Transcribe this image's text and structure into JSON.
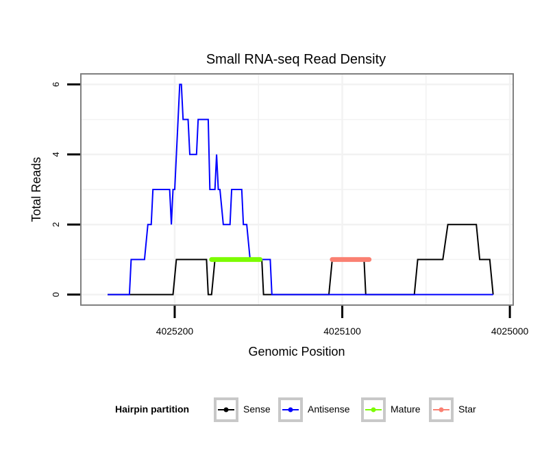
{
  "chart_data": {
    "type": "line",
    "title": "Small RNA-seq Read Density",
    "xlabel": "Genomic Position",
    "ylabel": "Total Reads",
    "x_reversed": true,
    "xlim": [
      4025256,
      4024998
    ],
    "ylim": [
      -0.3,
      6.3
    ],
    "xticks": [
      4025200,
      4025100,
      4025000
    ],
    "yticks": [
      0,
      2,
      4,
      6
    ],
    "grid": true,
    "legend_position": "bottom",
    "legend_title": "Hairpin partition",
    "series": [
      {
        "name": "Sense",
        "color": "#000000",
        "points": [
          [
            4025240,
            0
          ],
          [
            4025201,
            0
          ],
          [
            4025199,
            1
          ],
          [
            4025181,
            1
          ],
          [
            4025180,
            0
          ],
          [
            4025178,
            0
          ],
          [
            4025176,
            1
          ],
          [
            4025163,
            1
          ],
          [
            4025162,
            1
          ],
          [
            4025148,
            1
          ],
          [
            4025147,
            0
          ],
          [
            4025108,
            0
          ],
          [
            4025106,
            1
          ],
          [
            4025087,
            1
          ],
          [
            4025086,
            0
          ],
          [
            4025057,
            0
          ],
          [
            4025055,
            1
          ],
          [
            4025040,
            1
          ],
          [
            4025037,
            2
          ],
          [
            4025020,
            2
          ],
          [
            4025018,
            1
          ],
          [
            4025012,
            1
          ],
          [
            4025010,
            0
          ],
          [
            4025010,
            0
          ]
        ]
      },
      {
        "name": "Antisense",
        "color": "#0000ff",
        "points": [
          [
            4025240,
            0
          ],
          [
            4025227,
            0
          ],
          [
            4025226,
            1
          ],
          [
            4025218,
            1
          ],
          [
            4025216,
            2
          ],
          [
            4025214,
            2
          ],
          [
            4025213,
            3
          ],
          [
            4025203,
            3
          ],
          [
            4025202,
            2
          ],
          [
            4025201,
            3
          ],
          [
            4025200,
            3
          ],
          [
            4025198,
            5
          ],
          [
            4025197,
            6
          ],
          [
            4025196,
            6
          ],
          [
            4025195,
            5
          ],
          [
            4025192,
            5
          ],
          [
            4025191,
            4
          ],
          [
            4025187,
            4
          ],
          [
            4025186,
            5
          ],
          [
            4025180,
            5
          ],
          [
            4025179,
            3
          ],
          [
            4025176,
            3
          ],
          [
            4025175,
            4
          ],
          [
            4025174,
            3
          ],
          [
            4025173,
            3
          ],
          [
            4025171,
            2
          ],
          [
            4025167,
            2
          ],
          [
            4025166,
            3
          ],
          [
            4025160,
            3
          ],
          [
            4025159,
            2
          ],
          [
            4025157,
            2
          ],
          [
            4025155,
            1
          ],
          [
            4025143,
            1
          ],
          [
            4025142,
            0
          ],
          [
            4025010,
            0
          ]
        ]
      },
      {
        "name": "Mature",
        "color": "#7cfc00",
        "points": [
          [
            4025178,
            1
          ],
          [
            4025149,
            1
          ]
        ]
      },
      {
        "name": "Star",
        "color": "#fa8072",
        "points": [
          [
            4025106,
            1
          ],
          [
            4025084,
            1
          ]
        ]
      }
    ]
  }
}
